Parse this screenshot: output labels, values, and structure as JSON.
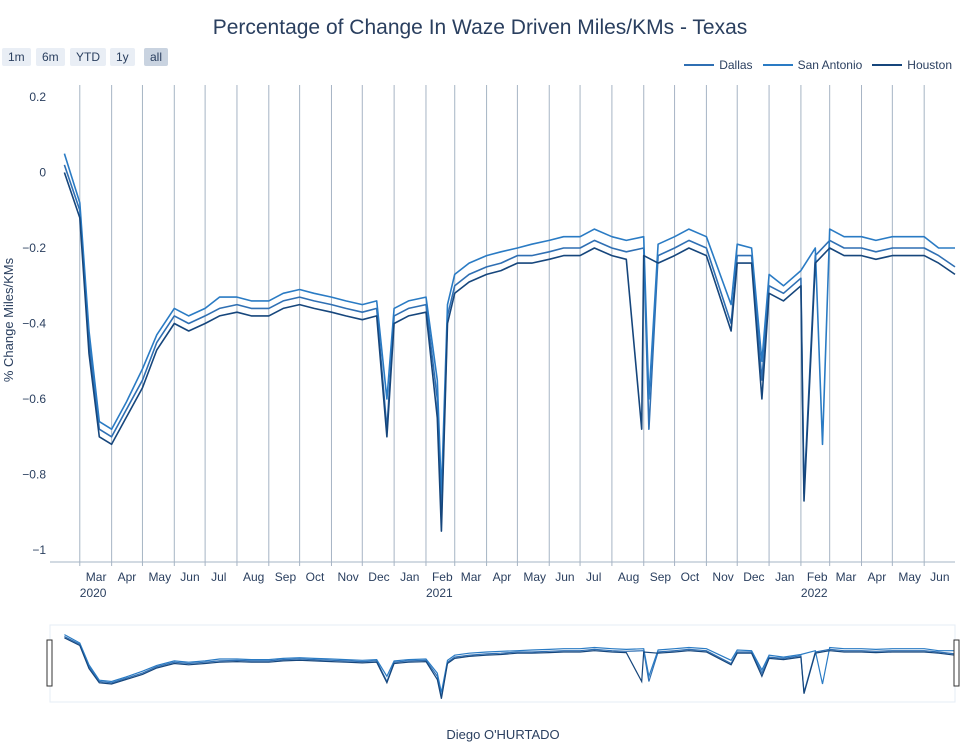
{
  "title": "Percentage of Change In Waze Driven Miles/KMs - Texas",
  "author": "Diego O'HURTADO",
  "range_selector": [
    {
      "label": "1m",
      "active": false
    },
    {
      "label": "6m",
      "active": false
    },
    {
      "label": "YTD",
      "active": false
    },
    {
      "label": "1y",
      "active": false
    },
    {
      "label": "all",
      "active": true
    }
  ],
  "colors": {
    "Dallas": "#2f6fb3",
    "San Antonio": "#2a7bc4",
    "Houston": "#16467c",
    "grid": "#a6b4c4",
    "axis_text": "#2a3f5f"
  },
  "chart_data": {
    "type": "line",
    "title": "Percentage of Change In Waze Driven Miles/KMs - Texas",
    "xlabel": "",
    "ylabel": "% Change Miles/KMs",
    "x_range": [
      "2020-02-01",
      "2022-07-01"
    ],
    "ylim": [
      -1,
      0.2
    ],
    "yticks": [
      {
        "value": 0.2,
        "label": "0.2"
      },
      {
        "value": 0,
        "label": "0"
      },
      {
        "value": -0.2,
        "label": "−0.2"
      },
      {
        "value": -0.4,
        "label": "−0.4"
      },
      {
        "value": -0.6,
        "label": "−0.6"
      },
      {
        "value": -0.8,
        "label": "−0.8"
      },
      {
        "value": -1,
        "label": "−1"
      }
    ],
    "xticks": [
      {
        "date": "2020-03-01",
        "label": "Mar",
        "year": "2020"
      },
      {
        "date": "2020-04-01",
        "label": "Apr"
      },
      {
        "date": "2020-05-01",
        "label": "May"
      },
      {
        "date": "2020-06-01",
        "label": "Jun"
      },
      {
        "date": "2020-07-01",
        "label": "Jul"
      },
      {
        "date": "2020-08-01",
        "label": "Aug"
      },
      {
        "date": "2020-09-01",
        "label": "Sep"
      },
      {
        "date": "2020-10-01",
        "label": "Oct"
      },
      {
        "date": "2020-11-01",
        "label": "Nov"
      },
      {
        "date": "2020-12-01",
        "label": "Dec"
      },
      {
        "date": "2021-01-01",
        "label": "Jan"
      },
      {
        "date": "2021-02-01",
        "label": "Feb",
        "year": "2021"
      },
      {
        "date": "2021-03-01",
        "label": "Mar"
      },
      {
        "date": "2021-04-01",
        "label": "Apr"
      },
      {
        "date": "2021-05-01",
        "label": "May"
      },
      {
        "date": "2021-06-01",
        "label": "Jun"
      },
      {
        "date": "2021-07-01",
        "label": "Jul"
      },
      {
        "date": "2021-08-01",
        "label": "Aug"
      },
      {
        "date": "2021-09-01",
        "label": "Sep"
      },
      {
        "date": "2021-10-01",
        "label": "Oct"
      },
      {
        "date": "2021-11-01",
        "label": "Nov"
      },
      {
        "date": "2021-12-01",
        "label": "Dec"
      },
      {
        "date": "2022-01-01",
        "label": "Jan"
      },
      {
        "date": "2022-02-01",
        "label": "Feb",
        "year": "2022"
      },
      {
        "date": "2022-03-01",
        "label": "Mar"
      },
      {
        "date": "2022-04-01",
        "label": "Apr"
      },
      {
        "date": "2022-05-01",
        "label": "May"
      },
      {
        "date": "2022-06-01",
        "label": "Jun"
      }
    ],
    "grid": true,
    "legend_position": "top-right",
    "series": [
      {
        "name": "Dallas",
        "x": [
          "2020-02-15",
          "2020-03-01",
          "2020-03-10",
          "2020-03-20",
          "2020-04-01",
          "2020-04-15",
          "2020-05-01",
          "2020-05-15",
          "2020-06-01",
          "2020-06-15",
          "2020-07-01",
          "2020-07-15",
          "2020-08-01",
          "2020-08-15",
          "2020-09-01",
          "2020-09-15",
          "2020-10-01",
          "2020-10-15",
          "2020-11-01",
          "2020-11-15",
          "2020-12-01",
          "2020-12-15",
          "2020-12-25",
          "2021-01-01",
          "2021-01-15",
          "2021-02-01",
          "2021-02-12",
          "2021-02-16",
          "2021-02-22",
          "2021-03-01",
          "2021-03-15",
          "2021-04-01",
          "2021-04-15",
          "2021-05-01",
          "2021-05-15",
          "2021-06-01",
          "2021-06-15",
          "2021-07-01",
          "2021-07-15",
          "2021-08-01",
          "2021-08-15",
          "2021-09-01",
          "2021-09-06",
          "2021-09-15",
          "2021-10-01",
          "2021-10-15",
          "2021-11-01",
          "2021-11-25",
          "2021-12-01",
          "2021-12-15",
          "2021-12-25",
          "2022-01-01",
          "2022-01-15",
          "2022-02-01",
          "2022-02-04",
          "2022-02-15",
          "2022-03-01",
          "2022-03-15",
          "2022-04-01",
          "2022-04-15",
          "2022-05-01",
          "2022-05-15",
          "2022-06-01",
          "2022-06-15",
          "2022-07-01"
        ],
        "y": [
          0.02,
          -0.1,
          -0.45,
          -0.68,
          -0.7,
          -0.63,
          -0.55,
          -0.45,
          -0.38,
          -0.4,
          -0.38,
          -0.36,
          -0.35,
          -0.36,
          -0.36,
          -0.34,
          -0.33,
          -0.34,
          -0.35,
          -0.36,
          -0.37,
          -0.36,
          -0.68,
          -0.38,
          -0.36,
          -0.35,
          -0.6,
          -0.92,
          -0.38,
          -0.3,
          -0.27,
          -0.25,
          -0.24,
          -0.22,
          -0.22,
          -0.21,
          -0.2,
          -0.2,
          -0.18,
          -0.2,
          -0.21,
          -0.2,
          -0.68,
          -0.22,
          -0.2,
          -0.18,
          -0.2,
          -0.4,
          -0.22,
          -0.22,
          -0.55,
          -0.3,
          -0.32,
          -0.28,
          -0.85,
          -0.22,
          -0.18,
          -0.2,
          -0.2,
          -0.21,
          -0.2,
          -0.2,
          -0.2,
          -0.22,
          -0.25
        ]
      },
      {
        "name": "San Antonio",
        "x": [
          "2020-02-15",
          "2020-03-01",
          "2020-03-10",
          "2020-03-20",
          "2020-04-01",
          "2020-04-15",
          "2020-05-01",
          "2020-05-15",
          "2020-06-01",
          "2020-06-15",
          "2020-07-01",
          "2020-07-15",
          "2020-08-01",
          "2020-08-15",
          "2020-09-01",
          "2020-09-15",
          "2020-10-01",
          "2020-10-15",
          "2020-11-01",
          "2020-11-15",
          "2020-12-01",
          "2020-12-15",
          "2020-12-25",
          "2021-01-01",
          "2021-01-15",
          "2021-02-01",
          "2021-02-12",
          "2021-02-16",
          "2021-02-22",
          "2021-03-01",
          "2021-03-15",
          "2021-04-01",
          "2021-04-15",
          "2021-05-01",
          "2021-05-15",
          "2021-06-01",
          "2021-06-15",
          "2021-07-01",
          "2021-07-15",
          "2021-08-01",
          "2021-08-15",
          "2021-09-01",
          "2021-09-06",
          "2021-09-15",
          "2021-10-01",
          "2021-10-15",
          "2021-11-01",
          "2021-11-25",
          "2021-12-01",
          "2021-12-15",
          "2021-12-25",
          "2022-01-01",
          "2022-01-15",
          "2022-02-01",
          "2022-02-15",
          "2022-02-22",
          "2022-03-01",
          "2022-03-15",
          "2022-04-01",
          "2022-04-15",
          "2022-05-01",
          "2022-05-15",
          "2022-06-01",
          "2022-06-15",
          "2022-07-01"
        ],
        "y": [
          0.05,
          -0.08,
          -0.42,
          -0.66,
          -0.68,
          -0.61,
          -0.52,
          -0.43,
          -0.36,
          -0.38,
          -0.36,
          -0.33,
          -0.33,
          -0.34,
          -0.34,
          -0.32,
          -0.31,
          -0.32,
          -0.33,
          -0.34,
          -0.35,
          -0.34,
          -0.6,
          -0.36,
          -0.34,
          -0.33,
          -0.55,
          -0.85,
          -0.35,
          -0.27,
          -0.24,
          -0.22,
          -0.21,
          -0.2,
          -0.19,
          -0.18,
          -0.17,
          -0.17,
          -0.15,
          -0.17,
          -0.18,
          -0.17,
          -0.6,
          -0.19,
          -0.17,
          -0.15,
          -0.17,
          -0.35,
          -0.19,
          -0.2,
          -0.5,
          -0.27,
          -0.3,
          -0.26,
          -0.2,
          -0.72,
          -0.15,
          -0.17,
          -0.17,
          -0.18,
          -0.17,
          -0.17,
          -0.17,
          -0.2,
          -0.2
        ]
      },
      {
        "name": "Houston",
        "x": [
          "2020-02-15",
          "2020-03-01",
          "2020-03-10",
          "2020-03-20",
          "2020-04-01",
          "2020-04-15",
          "2020-05-01",
          "2020-05-15",
          "2020-06-01",
          "2020-06-15",
          "2020-07-01",
          "2020-07-15",
          "2020-08-01",
          "2020-08-15",
          "2020-09-01",
          "2020-09-15",
          "2020-10-01",
          "2020-10-15",
          "2020-11-01",
          "2020-11-15",
          "2020-12-01",
          "2020-12-15",
          "2020-12-25",
          "2021-01-01",
          "2021-01-15",
          "2021-02-01",
          "2021-02-12",
          "2021-02-16",
          "2021-02-22",
          "2021-03-01",
          "2021-03-15",
          "2021-04-01",
          "2021-04-15",
          "2021-05-01",
          "2021-05-15",
          "2021-06-01",
          "2021-06-15",
          "2021-07-01",
          "2021-07-15",
          "2021-08-01",
          "2021-08-15",
          "2021-08-30",
          "2021-09-01",
          "2021-09-15",
          "2021-10-01",
          "2021-10-15",
          "2021-11-01",
          "2021-11-25",
          "2021-12-01",
          "2021-12-15",
          "2021-12-25",
          "2022-01-01",
          "2022-01-15",
          "2022-02-01",
          "2022-02-04",
          "2022-02-15",
          "2022-03-01",
          "2022-03-15",
          "2022-04-01",
          "2022-04-15",
          "2022-05-01",
          "2022-05-15",
          "2022-06-01",
          "2022-06-15",
          "2022-07-01"
        ],
        "y": [
          0.0,
          -0.12,
          -0.48,
          -0.7,
          -0.72,
          -0.65,
          -0.57,
          -0.47,
          -0.4,
          -0.42,
          -0.4,
          -0.38,
          -0.37,
          -0.38,
          -0.38,
          -0.36,
          -0.35,
          -0.36,
          -0.37,
          -0.38,
          -0.39,
          -0.38,
          -0.7,
          -0.4,
          -0.38,
          -0.37,
          -0.65,
          -0.95,
          -0.4,
          -0.32,
          -0.29,
          -0.27,
          -0.26,
          -0.24,
          -0.24,
          -0.23,
          -0.22,
          -0.22,
          -0.2,
          -0.22,
          -0.23,
          -0.68,
          -0.22,
          -0.24,
          -0.22,
          -0.2,
          -0.22,
          -0.42,
          -0.24,
          -0.24,
          -0.6,
          -0.32,
          -0.34,
          -0.3,
          -0.87,
          -0.24,
          -0.2,
          -0.22,
          -0.22,
          -0.23,
          -0.22,
          -0.22,
          -0.22,
          -0.24,
          -0.27
        ]
      }
    ]
  }
}
